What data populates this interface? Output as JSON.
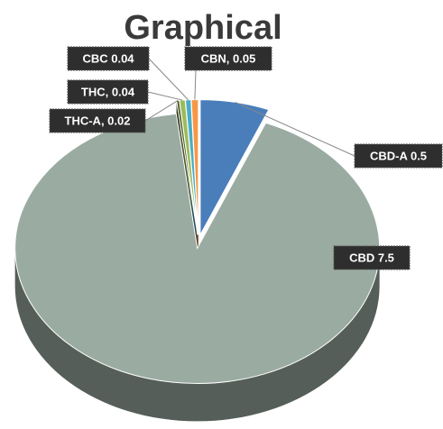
{
  "chart_data": {
    "type": "pie",
    "title": "Graphical",
    "values": [
      0.5,
      7.5,
      0.02,
      0.04,
      0.04,
      0.05
    ],
    "value_labels": [
      "CBD-A  0.5",
      "CBD  7.5",
      "THC-A, 0.02",
      "THC, 0.04",
      "CBC  0.04",
      "CBN, 0.05"
    ],
    "colors": [
      "#4a7ebb",
      "#9aaba2",
      "#4f6228",
      "#9bbb59",
      "#4bacc6",
      "#f79646"
    ]
  }
}
